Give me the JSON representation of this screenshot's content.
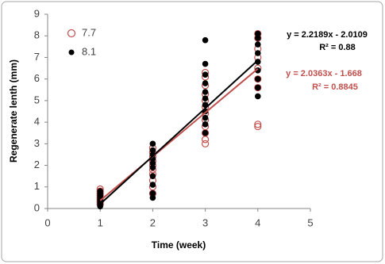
{
  "chart_data": {
    "type": "scatter",
    "xlabel": "Time (week)",
    "ylabel": "Regenerate lenth (mm)",
    "xlim": [
      0,
      5
    ],
    "xticks": [
      0,
      1,
      2,
      3,
      4,
      5
    ],
    "ylim": [
      0,
      9
    ],
    "yticks": [
      0,
      1,
      2,
      3,
      4,
      5,
      6,
      7,
      8,
      9
    ],
    "legend": "top-left",
    "series": [
      {
        "name": "7.7",
        "color": "#c0504d",
        "marker": "open-circle",
        "trendline": {
          "slope": 2.0363,
          "intercept": -1.668
        },
        "x": [
          1,
          1,
          1,
          1,
          1,
          1,
          1,
          1,
          2,
          2,
          2,
          2,
          2,
          2,
          2,
          2,
          2,
          2,
          3,
          3,
          3,
          3,
          3,
          3,
          3,
          3,
          3,
          3,
          3,
          3,
          4,
          4,
          4,
          4,
          4,
          4,
          4,
          4,
          4
        ],
        "y": [
          0.2,
          0.3,
          0.4,
          0.5,
          0.6,
          0.7,
          0.8,
          0.9,
          0.7,
          1.0,
          1.3,
          1.6,
          1.8,
          2.0,
          2.2,
          2.4,
          2.6,
          2.8,
          3.0,
          3.2,
          3.5,
          3.8,
          4.1,
          4.4,
          4.7,
          5.0,
          5.3,
          5.7,
          6.1,
          6.3,
          3.8,
          3.9,
          5.6,
          6.0,
          6.5,
          7.0,
          7.4,
          7.9,
          8.1
        ]
      },
      {
        "name": "8.1",
        "color": "#000000",
        "marker": "filled-circle",
        "trendline": {
          "slope": 2.2189,
          "intercept": -2.0109
        },
        "x": [
          1,
          1,
          1,
          1,
          1,
          1,
          1,
          1,
          2,
          2,
          2,
          2,
          2,
          2,
          2,
          2,
          2,
          2,
          3,
          3,
          3,
          3,
          3,
          3,
          3,
          3,
          3,
          3,
          3,
          4,
          4,
          4,
          4,
          4,
          4,
          4,
          4,
          4
        ],
        "y": [
          0.1,
          0.2,
          0.3,
          0.4,
          0.5,
          0.6,
          0.7,
          0.8,
          0.5,
          0.7,
          1.1,
          1.5,
          1.9,
          2.1,
          2.3,
          2.5,
          2.7,
          3.0,
          3.5,
          3.9,
          4.2,
          4.5,
          4.8,
          5.1,
          5.4,
          5.8,
          6.2,
          6.7,
          7.8,
          5.2,
          5.6,
          6.0,
          6.4,
          6.8,
          7.2,
          7.6,
          7.9,
          8.1
        ]
      }
    ],
    "annotations": [
      {
        "text": "y = 2.2189x - 2.0109",
        "color": "#000000"
      },
      {
        "text": "R² = 0.88",
        "color": "#000000"
      },
      {
        "text": "y = 2.0363x - 1.668",
        "color": "#c0504d"
      },
      {
        "text": "R² = 0.8845",
        "color": "#c0504d"
      }
    ]
  }
}
